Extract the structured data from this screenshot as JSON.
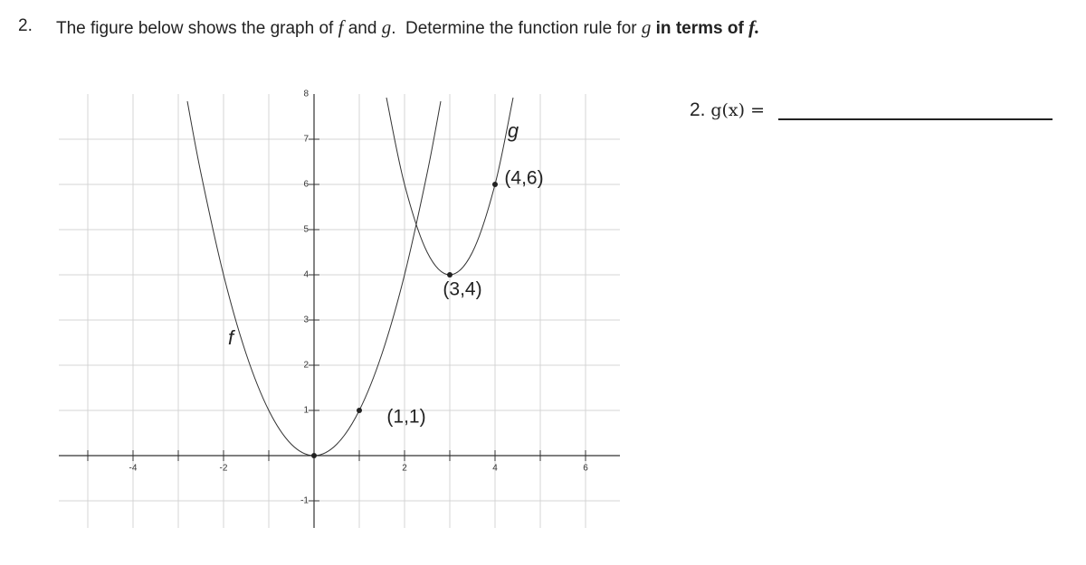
{
  "question": {
    "number": "2.",
    "segments": [
      {
        "text": "The figure below shows the graph of "
      },
      {
        "text": "f",
        "italic": true
      },
      {
        "text": " and "
      },
      {
        "text": "g",
        "italic": true
      },
      {
        "text": ".  Determine the function rule for "
      },
      {
        "text": "g",
        "italic": true
      },
      {
        "text": " in terms of ",
        "bold": true
      },
      {
        "text": "f.",
        "bold": true,
        "italic": true
      }
    ]
  },
  "answer": {
    "number": "2.",
    "expression": "g(x) ="
  },
  "chart_data": {
    "type": "line",
    "xlim": [
      -5.64,
      6.76
    ],
    "ylim": [
      -1.6,
      8
    ],
    "xticks": [
      -4,
      -2,
      2,
      4,
      6
    ],
    "yticks": [
      -1,
      1,
      2,
      3,
      4,
      5,
      6,
      7,
      8
    ],
    "xgrid": [
      -5,
      -4,
      -3,
      -2,
      -1,
      1,
      2,
      3,
      4,
      5,
      6
    ],
    "ygrid": [
      -1,
      1,
      2,
      3,
      4,
      5,
      6,
      7
    ],
    "grid": true,
    "series": [
      {
        "name": "f",
        "color": "#333333",
        "x": [
          -2.8,
          -2.5,
          -2,
          -1.5,
          -1,
          -0.5,
          0,
          0.5,
          1,
          1.5,
          2,
          2.5,
          2.8
        ],
        "values": [
          7.84,
          6.25,
          4,
          2.25,
          1,
          0.25,
          0,
          0.25,
          1,
          2.25,
          4,
          6.25,
          7.84
        ]
      },
      {
        "name": "g",
        "color": "#333333",
        "x": [
          1.6,
          2,
          2.5,
          3,
          3.5,
          4,
          4.4
        ],
        "values": [
          7.92,
          6,
          4.5,
          4,
          4.5,
          6,
          7.92
        ]
      }
    ],
    "points": [
      {
        "x": 0,
        "y": 0
      },
      {
        "x": 1,
        "y": 1,
        "label": "(1,1)"
      },
      {
        "x": 3,
        "y": 4,
        "label": "(3,4)"
      },
      {
        "x": 4,
        "y": 6,
        "label": "(4,6)"
      }
    ]
  }
}
